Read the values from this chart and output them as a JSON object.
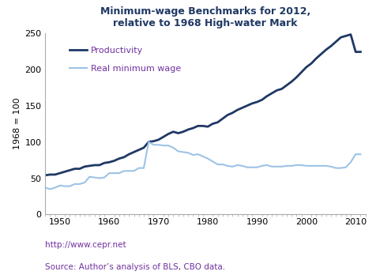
{
  "title": "Minimum-wage Benchmarks for 2012,\nrelative to 1968 High-water Mark",
  "ylabel": "1968 = 100",
  "footnote_line1": "http://www.cepr.net",
  "footnote_line2": "Source: Author’s analysis of BLS, CBO data.",
  "xlim": [
    1947,
    2012
  ],
  "ylim": [
    0,
    250
  ],
  "yticks": [
    0,
    50,
    100,
    150,
    200,
    250
  ],
  "xticks": [
    1950,
    1960,
    1970,
    1980,
    1990,
    2000,
    2010
  ],
  "productivity_color": "#1f3864",
  "real_min_wage_color": "#9dc3e6",
  "productivity_label": "Productivity",
  "real_min_wage_label": "Real minimum wage",
  "productivity_years": [
    1947,
    1948,
    1949,
    1950,
    1951,
    1952,
    1953,
    1954,
    1955,
    1956,
    1957,
    1958,
    1959,
    1960,
    1961,
    1962,
    1963,
    1964,
    1965,
    1966,
    1967,
    1968,
    1969,
    1970,
    1971,
    1972,
    1973,
    1974,
    1975,
    1976,
    1977,
    1978,
    1979,
    1980,
    1981,
    1982,
    1983,
    1984,
    1985,
    1986,
    1987,
    1988,
    1989,
    1990,
    1991,
    1992,
    1993,
    1994,
    1995,
    1996,
    1997,
    1998,
    1999,
    2000,
    2001,
    2002,
    2003,
    2004,
    2005,
    2006,
    2007,
    2008,
    2009,
    2010,
    2011
  ],
  "productivity_values": [
    54,
    55,
    55,
    57,
    59,
    61,
    63,
    63,
    66,
    67,
    68,
    68,
    71,
    72,
    74,
    77,
    79,
    83,
    86,
    89,
    92,
    100,
    101,
    103,
    107,
    111,
    114,
    112,
    114,
    117,
    119,
    122,
    122,
    121,
    125,
    127,
    132,
    137,
    140,
    144,
    147,
    150,
    153,
    155,
    158,
    163,
    167,
    171,
    173,
    178,
    183,
    189,
    196,
    203,
    208,
    215,
    221,
    227,
    232,
    238,
    244,
    246,
    248,
    224,
    224
  ],
  "rmw_years": [
    1947,
    1948,
    1949,
    1950,
    1951,
    1952,
    1953,
    1954,
    1955,
    1956,
    1957,
    1958,
    1959,
    1960,
    1961,
    1962,
    1963,
    1964,
    1965,
    1966,
    1967,
    1968,
    1969,
    1970,
    1971,
    1972,
    1973,
    1974,
    1975,
    1976,
    1977,
    1978,
    1979,
    1980,
    1981,
    1982,
    1983,
    1984,
    1985,
    1986,
    1987,
    1988,
    1989,
    1990,
    1991,
    1992,
    1993,
    1994,
    1995,
    1996,
    1997,
    1998,
    1999,
    2000,
    2001,
    2002,
    2003,
    2004,
    2005,
    2006,
    2007,
    2008,
    2009,
    2010,
    2011
  ],
  "rmw_values": [
    37,
    35,
    37,
    40,
    39,
    39,
    42,
    42,
    44,
    52,
    51,
    50,
    51,
    57,
    57,
    57,
    60,
    60,
    60,
    64,
    64,
    100,
    96,
    96,
    95,
    95,
    92,
    87,
    86,
    85,
    82,
    83,
    80,
    77,
    73,
    69,
    69,
    67,
    66,
    68,
    67,
    65,
    65,
    65,
    67,
    68,
    66,
    66,
    66,
    67,
    67,
    68,
    68,
    67,
    67,
    67,
    67,
    67,
    66,
    64,
    64,
    65,
    72,
    83,
    83
  ],
  "background_color": "#ffffff",
  "title_color": "#1f3864",
  "legend_label_color": "#7030a0",
  "footnote_color": "#7030a0",
  "axis_color": "#aaaaaa",
  "tick_label_color": "#000000",
  "title_fontsize": 9,
  "tick_fontsize": 8,
  "ylabel_fontsize": 8,
  "legend_fontsize": 8,
  "footnote_fontsize": 7.5
}
